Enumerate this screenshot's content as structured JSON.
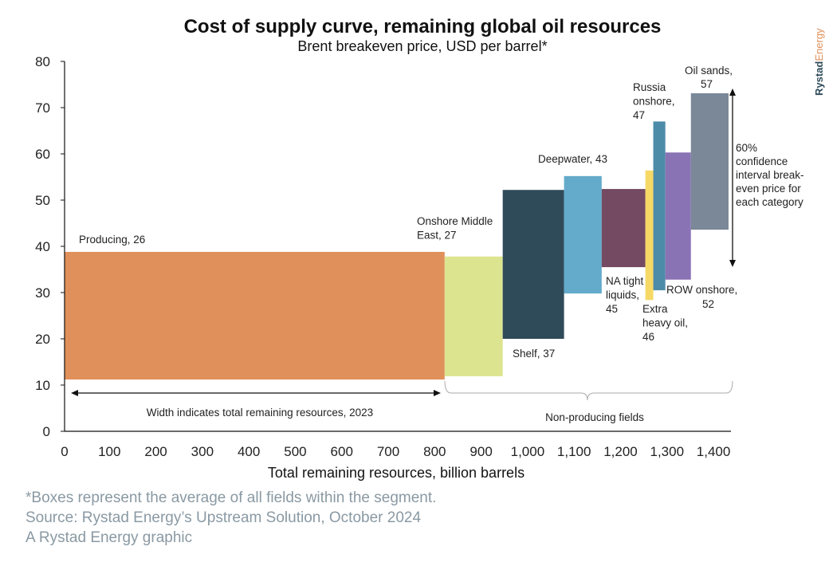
{
  "chart_data": {
    "type": "bar",
    "subtype": "variable-width floating boxes (cost of supply curve)",
    "title": "Cost of supply curve, remaining global oil resources",
    "subtitle": "Brent breakeven price, USD per barrel*",
    "xlabel": "Total remaining resources, billion barrels",
    "ylabel": "",
    "xlim": [
      0,
      1400
    ],
    "ylim": [
      0,
      80
    ],
    "xticks": [
      "0",
      "100",
      "200",
      "300",
      "400",
      "500",
      "600",
      "700",
      "800",
      "900",
      "1,000",
      "1,100",
      "1,200",
      "1,300",
      "1,400"
    ],
    "yticks": [
      "0",
      "10",
      "20",
      "30",
      "40",
      "50",
      "60",
      "70",
      "80"
    ],
    "grid": false,
    "series": [
      {
        "name": "Producing",
        "breakeven": 26,
        "x_start": 0,
        "x_end": 818,
        "low": 11.2,
        "high": 38.8,
        "color": "#E0905A"
      },
      {
        "name": "Onshore Middle East",
        "breakeven": 27,
        "x_start": 818,
        "x_end": 943,
        "low": 11.9,
        "high": 37.8,
        "color": "#DDE48F"
      },
      {
        "name": "Shelf",
        "breakeven": 37,
        "x_start": 943,
        "x_end": 1075,
        "low": 20.0,
        "high": 52.2,
        "color": "#2F4B5A"
      },
      {
        "name": "Deepwater",
        "breakeven": 43,
        "x_start": 1075,
        "x_end": 1156,
        "low": 29.8,
        "high": 55.2,
        "color": "#63AACB"
      },
      {
        "name": "NA tight liquids",
        "breakeven": 45,
        "x_start": 1156,
        "x_end": 1250,
        "low": 35.5,
        "high": 52.4,
        "color": "#734A61"
      },
      {
        "name": "Extra heavy oil",
        "breakeven": 46,
        "x_start": 1250,
        "x_end": 1267,
        "low": 28.4,
        "high": 56.4,
        "color": "#F6D865"
      },
      {
        "name": "Russia onshore",
        "breakeven": 47,
        "x_start": 1267,
        "x_end": 1293,
        "low": 30.5,
        "high": 67.0,
        "color": "#4D8CA8"
      },
      {
        "name": "ROW onshore",
        "breakeven": 52,
        "x_start": 1293,
        "x_end": 1348,
        "low": 32.8,
        "high": 60.3,
        "color": "#8A73B5"
      },
      {
        "name": "Oil sands",
        "breakeven": 57,
        "x_start": 1348,
        "x_end": 1429,
        "low": 43.6,
        "high": 73.1,
        "color": "#7A8898"
      }
    ],
    "labels": {
      "producing": [
        "Producing, 26"
      ],
      "onshore_me": [
        "Onshore Middle",
        "East, 27"
      ],
      "shelf": [
        "Shelf, 37"
      ],
      "deepwater": [
        "Deepwater, 43"
      ],
      "na_tight": [
        "NA tight",
        "liquids,",
        "45"
      ],
      "extra_heavy": [
        "Extra",
        "heavy oil,",
        "46"
      ],
      "russia": [
        "Russia",
        "onshore,",
        "47"
      ],
      "row": [
        "ROW onshore,",
        "52"
      ],
      "oil_sands": [
        "Oil sands,",
        "57"
      ]
    },
    "annotations": {
      "confidence": [
        "60%",
        "confidence",
        "interval break-",
        "even price for",
        "each category"
      ],
      "width_note": "Width indicates total remaining resources, 2023",
      "non_producing": "Non-producing fields"
    }
  },
  "brand": "RystadEnergy",
  "footer": [
    "*Boxes represent the average of all fields within the segment.",
    "Source: Rystad Energy’s Upstream Solution, October 2024",
    "A Rystad Energy graphic"
  ]
}
